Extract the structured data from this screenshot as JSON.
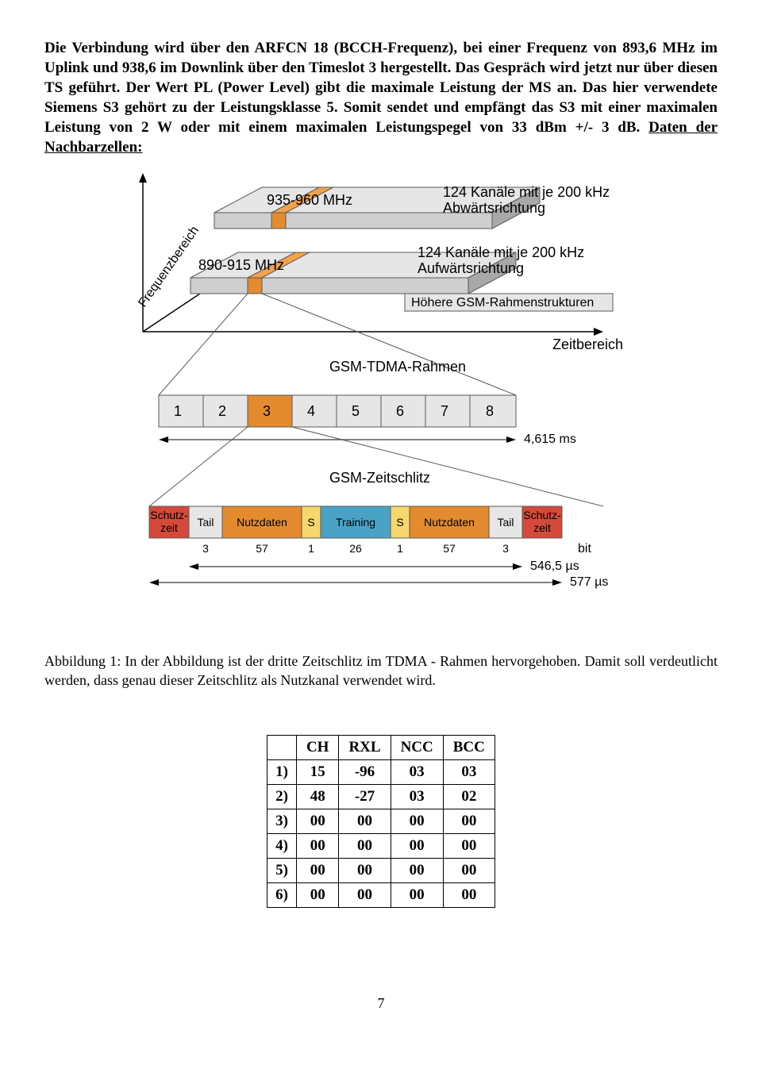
{
  "paragraph1_html": "Die Verbindung wird über den ARFCN 18 (BCCH-Frequenz), bei einer Frequenz von 893,6 MHz im Uplink und 938,6 im Downlink über den Timeslot 3 hergestellt. Das Gespräch wird jetzt nur über diesen TS geführt. Der Wert PL (Power Level) gibt die maximale Leistung der MS an. Das hier verwendete Siemens S3 gehört zu der Leistungsklasse 5. Somit sendet und empfängt das S3 mit einer maximalen Leistung von 2 W oder mit einem maximalen Leistungspegel von 33 dBm +/- 3 dB. ",
  "paragraph1_tail": "Daten der Nachbarzellen:",
  "caption": "Abbildung 1: In der Abbildung ist der dritte Zeitschlitz im TDMA - Rahmen hervorgehoben. Damit soll verdeutlicht werden, dass genau dieser Zeitschlitz als Nutzkanal verwendet wird.",
  "figure": {
    "freq_axis_label": "Frequenzbereich",
    "time_axis_label": "Zeitbereich",
    "uplink_band": "890-915 MHz",
    "downlink_band": "935-960 MHz",
    "downlink_desc1": "124 Kanäle mit je 200 kHz",
    "downlink_desc2": "Abwärtsrichtung",
    "uplink_desc1": "124 Kanäle mit je 200 kHz",
    "uplink_desc2": "Aufwärtsrichtung",
    "uplink_desc3": "Höhere GSM-Rahmenstrukturen",
    "frame_label": "GSM-TDMA-Rahmen",
    "frame_duration": "4,615 ms",
    "slot_label": "GSM-Zeitschlitz",
    "slots": [
      "1",
      "2",
      "3",
      "4",
      "5",
      "6",
      "7",
      "8"
    ],
    "burst": {
      "parts": [
        {
          "label": "Schutz-\nzeit",
          "style": "red",
          "bits": ""
        },
        {
          "label": "Tail",
          "style": "grey",
          "bits": "3"
        },
        {
          "label": "Nutzdaten",
          "style": "orange",
          "bits": "57"
        },
        {
          "label": "S",
          "style": "yellow",
          "bits": "1"
        },
        {
          "label": "Training",
          "style": "blue",
          "bits": "26"
        },
        {
          "label": "S",
          "style": "yellow",
          "bits": "1"
        },
        {
          "label": "Nutzdaten",
          "style": "orange",
          "bits": "57"
        },
        {
          "label": "Tail",
          "style": "grey",
          "bits": "3"
        },
        {
          "label": "Schutz-\nzeit",
          "style": "red",
          "bits": ""
        }
      ],
      "bit_label": "bit",
      "dur1": "546,5 µs",
      "dur2": "577 µs"
    }
  },
  "table": {
    "headers": [
      "",
      "CH",
      "RXL",
      "NCC",
      "BCC"
    ],
    "rows": [
      [
        "1)",
        "15",
        "-96",
        "03",
        "03"
      ],
      [
        "2)",
        "48",
        "-27",
        "03",
        "02"
      ],
      [
        "3)",
        "00",
        "00",
        "00",
        "00"
      ],
      [
        "4)",
        "00",
        "00",
        "00",
        "00"
      ],
      [
        "5)",
        "00",
        "00",
        "00",
        "00"
      ],
      [
        "6)",
        "00",
        "00",
        "00",
        "00"
      ]
    ]
  },
  "page_number": "7"
}
